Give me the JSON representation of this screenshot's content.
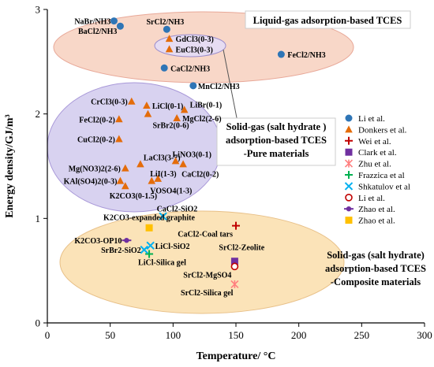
{
  "chart_data": {
    "type": "scatter",
    "xlabel": "Temperature/ °C",
    "ylabel": "Energy density/GJ/m³",
    "xlim": [
      0,
      300
    ],
    "ylim": [
      0,
      3
    ],
    "xticks": [
      "0",
      "50",
      "100",
      "150",
      "200",
      "250",
      "300"
    ],
    "yticks": [
      "0",
      "1",
      "2",
      "3"
    ],
    "grid": false,
    "legend_position": "right",
    "regions": [
      {
        "label": "Liquid-gas adsorption-based TCES",
        "color": "#f8d7c8"
      },
      {
        "label": "Solid-gas (salt hydrate ) adsorption-based TCES -Pure materials",
        "color": "#d8d2f0"
      },
      {
        "label": "Solid-gas (salt hydrate) adsorption-based TCES -Composite materials",
        "color": "#fbe3b8"
      }
    ],
    "series": [
      {
        "name": "Li et al.",
        "marker": "circle",
        "color": "#2e75b6",
        "points": [
          {
            "label": "NaBr/NH3",
            "x": 53,
            "y": 2.89
          },
          {
            "label": "BaCl2/NH3",
            "x": 58,
            "y": 2.84
          },
          {
            "label": "SrCl2/NH3",
            "x": 95,
            "y": 2.81
          },
          {
            "label": "CaCl2/NH3",
            "x": 93,
            "y": 2.44
          },
          {
            "label": "MnCl2/NH3",
            "x": 116,
            "y": 2.27
          },
          {
            "label": "FeCl2/NH3",
            "x": 186,
            "y": 2.57
          }
        ]
      },
      {
        "name": "Donkers et al.",
        "marker": "triangle",
        "color": "#e46c0a",
        "points": [
          {
            "label": "GdCl3(0-3)",
            "x": 97,
            "y": 2.72
          },
          {
            "label": "EuCl3(0-3)",
            "x": 97,
            "y": 2.62
          },
          {
            "label": "CrCl3(0-3)",
            "x": 67,
            "y": 2.12
          },
          {
            "label": "LiCl(0-1)",
            "x": 79,
            "y": 2.08
          },
          {
            "label": "LiBr(0-1)",
            "x": 109,
            "y": 2.04
          },
          {
            "label": "SrBr2(0-6)",
            "x": 80,
            "y": 2.0
          },
          {
            "label": "FeCl2(0-2)",
            "x": 57,
            "y": 1.95
          },
          {
            "label": "MgCl2(2-6)",
            "x": 103,
            "y": 1.96
          },
          {
            "label": "CuCl2(0-2)",
            "x": 57,
            "y": 1.76
          },
          {
            "label": "LaCl3(3-7)",
            "x": 74,
            "y": 1.52
          },
          {
            "label": "Mg(NO3)2(2-6)",
            "x": 62,
            "y": 1.48
          },
          {
            "label": "LiNO3(0-1)",
            "x": 102,
            "y": 1.55
          },
          {
            "label": "CaCl2(0-2)",
            "x": 108,
            "y": 1.52
          },
          {
            "label": "LiI(1-3)",
            "x": 88,
            "y": 1.38
          },
          {
            "label": "KAl(SO4)2(0-3)",
            "x": 58,
            "y": 1.36
          },
          {
            "label": "K2CO3(0-1.5)",
            "x": 62,
            "y": 1.31
          },
          {
            "label": "VOSO4(1-3)",
            "x": 83,
            "y": 1.36
          }
        ]
      },
      {
        "name": "Wei et al.",
        "marker": "plus",
        "color": "#c00000",
        "points": [
          {
            "label": "CaCl2-Coal tars",
            "x": 150,
            "y": 0.93
          }
        ]
      },
      {
        "name": "Clark et al.",
        "marker": "square",
        "color": "#7030a0",
        "points": [
          {
            "label": "SrCl2-Zeolite",
            "x": 149,
            "y": 0.59
          }
        ]
      },
      {
        "name": "Zhu et al.",
        "marker": "asterisk",
        "color": "#ff7f7f",
        "points": [
          {
            "label": "SrCl2-Silica gel",
            "x": 149,
            "y": 0.37
          }
        ]
      },
      {
        "name": "Frazzica et al",
        "marker": "plus",
        "color": "#00b050",
        "points": [
          {
            "label": "LiCl-Silica gel",
            "x": 81,
            "y": 0.66
          }
        ]
      },
      {
        "name": "Shkatulov et al",
        "marker": "x",
        "color": "#00b0f0",
        "points": [
          {
            "label": "CaCl2-SiO2",
            "x": 92,
            "y": 1.02
          },
          {
            "label": "LiCl-SiO2",
            "x": 82,
            "y": 0.74
          },
          {
            "label": "SrBr2-SiO2",
            "x": 77,
            "y": 0.7
          }
        ]
      },
      {
        "name": "Li et al.",
        "marker": "open-circle",
        "color": "#c00000",
        "points": [
          {
            "label": "SrCl2-MgSO4",
            "x": 149,
            "y": 0.54
          }
        ]
      },
      {
        "name": "Zhao et al.",
        "marker": "dash-circle",
        "color": "#7030a0",
        "points": [
          {
            "label": "K2CO3-OP10",
            "x": 63,
            "y": 0.79
          }
        ]
      },
      {
        "name": "Zhao et al.",
        "marker": "square",
        "color": "#ffc000",
        "points": [
          {
            "label": "K2CO3-expanded graphite",
            "x": 81,
            "y": 0.91
          }
        ]
      }
    ]
  },
  "regions_text": {
    "liquid_gas": "Liquid-gas adsorption-based TCES",
    "pure_line1": "Solid-gas (salt hydrate )",
    "pure_line2": "adsorption-based TCES",
    "pure_line3": "-Pure materials",
    "comp_line1": "Solid-gas (salt hydrate)",
    "comp_line2": "adsorption-based TCES",
    "comp_line3": "-Composite materials"
  }
}
